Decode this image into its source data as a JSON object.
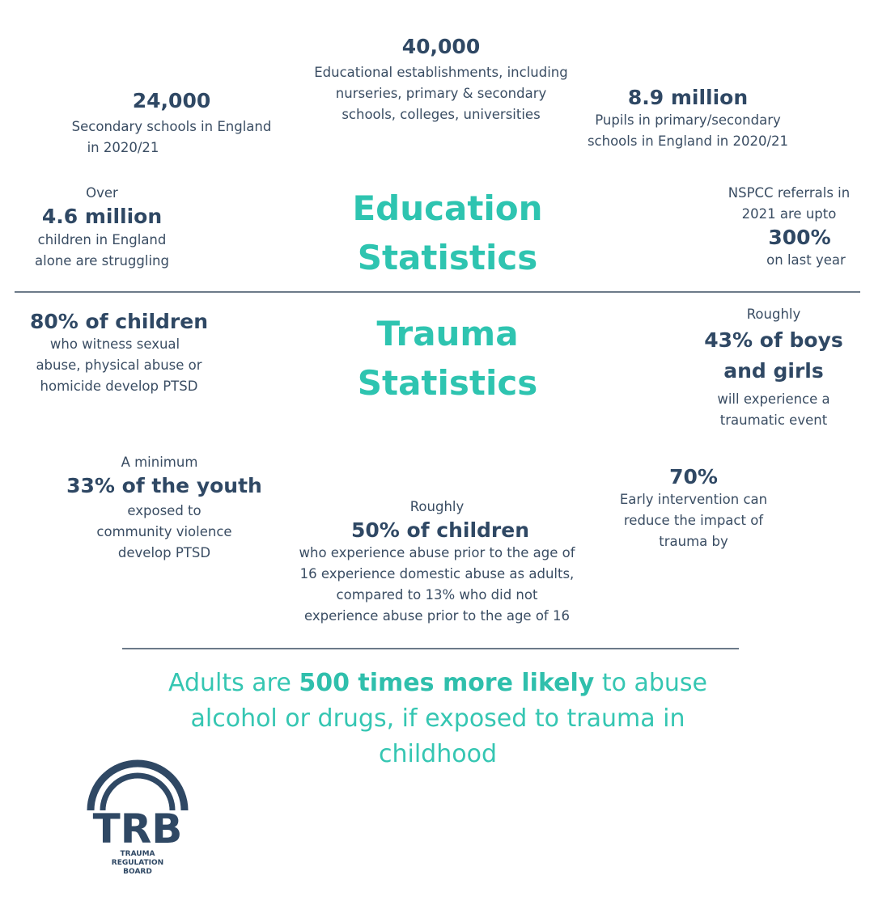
{
  "colors": {
    "navy": "#2f4864",
    "teal": "#2ec4b0"
  },
  "education": {
    "heading": [
      "Education",
      "Statistics"
    ],
    "establishments": {
      "value": "40,000",
      "lines": [
        "Educational establishments, including",
        "nurseries, primary & secondary",
        "schools, colleges, universities"
      ]
    },
    "secondary": {
      "value": "24,000",
      "lines": [
        "Secondary schools in England",
        "in 2020/21"
      ]
    },
    "pupils": {
      "value": "8.9 million",
      "lines": [
        "Pupils in primary/secondary",
        "schools in England in 2020/21"
      ]
    },
    "struggling": {
      "prefix": "Over",
      "value": "4.6 million",
      "lines": [
        "children in England",
        "alone are struggling"
      ]
    },
    "nspcc": {
      "lines": [
        "NSPCC referrals in",
        "2021 are upto"
      ],
      "value": "300%",
      "suffix": "on last year"
    }
  },
  "trauma": {
    "heading": [
      "Trauma",
      "Statistics"
    ],
    "ptsd": {
      "value": "80% of children",
      "lines": [
        "who witness sexual",
        "abuse, physical abuse or",
        "homicide develop PTSD"
      ]
    },
    "boys_girls": {
      "prefix": "Roughly",
      "value": [
        "43% of boys",
        "and girls"
      ],
      "lines": [
        "will experience a",
        "traumatic event"
      ]
    },
    "youth": {
      "prefix": "A minimum",
      "value": "33% of the youth",
      "lines": [
        "exposed to",
        "community violence",
        "develop PTSD"
      ]
    },
    "intervention": {
      "value": "70%",
      "lines": [
        "Early intervention can",
        "reduce the impact of",
        "trauma by"
      ]
    },
    "abuse": {
      "prefix": "Roughly",
      "value": "50% of children",
      "lines": [
        "who experience abuse prior to the age of",
        "16 experience domestic abuse as adults,",
        "compared to 13% who did not",
        "experience abuse prior to the age of 16"
      ]
    }
  },
  "footer": {
    "before": "Adults are ",
    "bold": "500 times more likely",
    "after": " to abuse alcohol or drugs, if  exposed to trauma in childhood"
  },
  "logo": {
    "mark": "TRB",
    "name": [
      "TRAUMA",
      "REGULATION",
      "BOARD"
    ]
  }
}
